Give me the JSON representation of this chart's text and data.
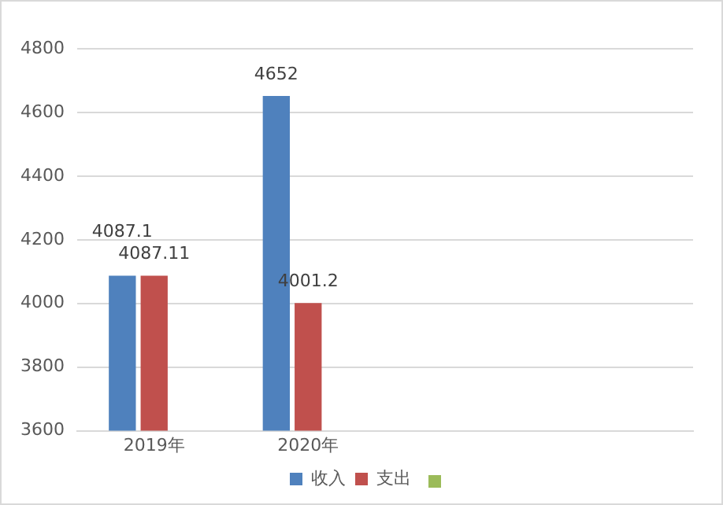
{
  "chart_data": {
    "type": "bar",
    "categories": [
      "2019年",
      "2020年",
      null,
      null
    ],
    "series": [
      {
        "name": "收入",
        "color": "#4f81bd",
        "values": [
          4087.1,
          4652,
          null,
          null
        ]
      },
      {
        "name": "支出",
        "color": "#c0504d",
        "values": [
          4087.11,
          4001.2,
          null,
          null
        ]
      },
      {
        "color": "#9bbb59",
        "values": [
          null,
          null,
          null,
          null
        ]
      }
    ],
    "ylim": [
      3600,
      4800
    ],
    "yticks": [
      3600,
      3800,
      4000,
      4200,
      4400,
      4600,
      4800
    ],
    "grid": "y",
    "legend": "bottom",
    "data_labels": true
  }
}
